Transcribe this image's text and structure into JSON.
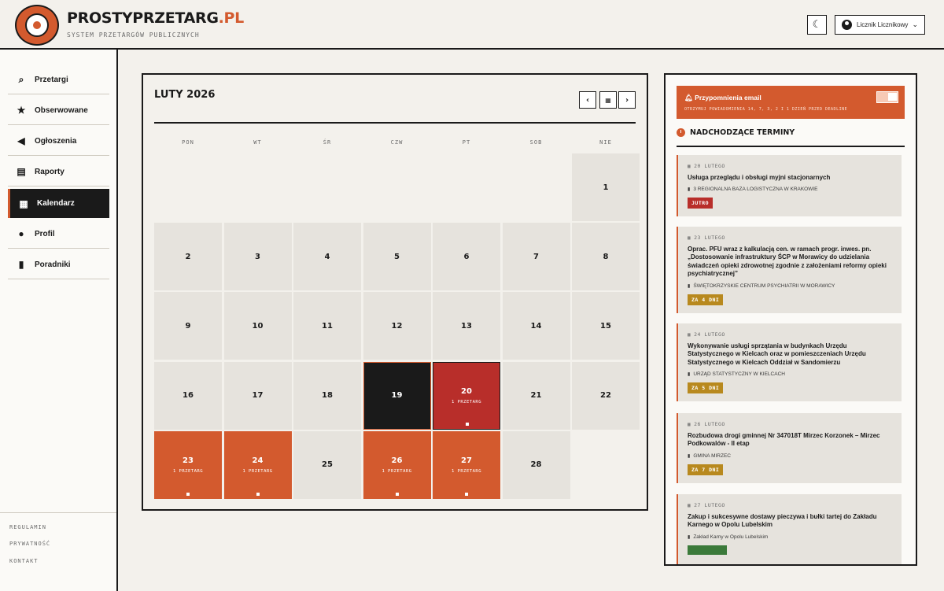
{
  "header": {
    "brand_main": "PROSTYPRZETARG",
    "brand_suffix": ".PL",
    "tagline": "SYSTEM PRZETARGÓW PUBLICZNYCH",
    "theme_icon": "moon-icon",
    "user_name": "Licznik Licznikowy"
  },
  "sidebar": {
    "items": [
      {
        "label": "Przetargi",
        "icon": "search-icon"
      },
      {
        "label": "Obserwowane",
        "icon": "star-icon"
      },
      {
        "label": "Ogłoszenia",
        "icon": "megaphone-icon"
      },
      {
        "label": "Raporty",
        "icon": "report-icon"
      },
      {
        "label": "Kalendarz",
        "icon": "calendar-icon"
      },
      {
        "label": "Profil",
        "icon": "user-icon"
      },
      {
        "label": "Poradniki",
        "icon": "book-icon"
      }
    ],
    "active": "Kalendarz",
    "footer": [
      "REGULAMIN",
      "PRYWATNOŚĆ",
      "KONTAKT"
    ]
  },
  "calendar": {
    "title": "LUTY 2026",
    "weekdays": [
      "PON",
      "WT",
      "ŚR",
      "CZW",
      "PT",
      "SOB",
      "NIE"
    ],
    "days": [
      {
        "n": "1",
        "state": "normal",
        "count": ""
      },
      {
        "n": "2",
        "state": "normal",
        "count": ""
      },
      {
        "n": "3",
        "state": "normal",
        "count": ""
      },
      {
        "n": "4",
        "state": "normal",
        "count": ""
      },
      {
        "n": "5",
        "state": "normal",
        "count": ""
      },
      {
        "n": "6",
        "state": "normal",
        "count": ""
      },
      {
        "n": "7",
        "state": "normal",
        "count": ""
      },
      {
        "n": "8",
        "state": "normal",
        "count": ""
      },
      {
        "n": "9",
        "state": "normal",
        "count": ""
      },
      {
        "n": "10",
        "state": "normal",
        "count": ""
      },
      {
        "n": "11",
        "state": "normal",
        "count": ""
      },
      {
        "n": "12",
        "state": "normal",
        "count": ""
      },
      {
        "n": "13",
        "state": "normal",
        "count": ""
      },
      {
        "n": "14",
        "state": "normal",
        "count": ""
      },
      {
        "n": "15",
        "state": "normal",
        "count": ""
      },
      {
        "n": "16",
        "state": "normal",
        "count": ""
      },
      {
        "n": "17",
        "state": "normal",
        "count": ""
      },
      {
        "n": "18",
        "state": "normal",
        "count": ""
      },
      {
        "n": "19",
        "state": "today",
        "count": ""
      },
      {
        "n": "20",
        "state": "red",
        "count": "1 PRZETARG"
      },
      {
        "n": "21",
        "state": "normal",
        "count": ""
      },
      {
        "n": "22",
        "state": "normal",
        "count": ""
      },
      {
        "n": "23",
        "state": "orange",
        "count": "1 PRZETARG"
      },
      {
        "n": "24",
        "state": "orange",
        "count": "1 PRZETARG"
      },
      {
        "n": "25",
        "state": "normal",
        "count": ""
      },
      {
        "n": "26",
        "state": "orange",
        "count": "1 PRZETARG"
      },
      {
        "n": "27",
        "state": "orange",
        "count": "1 PRZETARG"
      },
      {
        "n": "28",
        "state": "normal",
        "count": ""
      }
    ]
  },
  "panel": {
    "reminder_title": "Przypomnienia email",
    "reminder_sub": "OTRZYMUJ POWIADOMIENIA 14, 7, 3, 2 I 1 DZIEŃ PRZED DEADLINE",
    "upcoming_title": "NADCHODZĄCE TERMINY",
    "events": [
      {
        "date": "20 LUTEGO",
        "name": "Usługa przeglądu i obsługi myjni stacjonarnych",
        "org": "3 REGIONALNA BAZA LOGISTYCZNA W KRAKOWIE",
        "badge": "JUTRO",
        "badge_color": "#b82e2a"
      },
      {
        "date": "23 LUTEGO",
        "name": "Oprac. PFU wraz z kalkulacją cen. w ramach progr. inwes. pn. „Dostosowanie infrastruktury ŚCP w Morawicy do udzielania świadczeń opieki zdrowotnej zgodnie z założeniami reformy opieki psychiatrycznej”",
        "org": "ŚWIĘTOKRZYSKIE CENTRUM PSYCHIATRII W MORAWICY",
        "badge": "ZA 4 DNI",
        "badge_color": "#b8891e"
      },
      {
        "date": "24 LUTEGO",
        "name": "Wykonywanie usługi sprzątania w budynkach Urzędu Statystycznego w Kielcach oraz w pomieszczeniach Urzędu Statystycznego w Kielcach Oddział w Sandomierzu",
        "org": "URZĄD STATYSTYCZNY W KIELCACH",
        "badge": "ZA 5 DNI",
        "badge_color": "#b8891e"
      },
      {
        "date": "26 LUTEGO",
        "name": "Rozbudowa drogi gminnej Nr 347018T Mirzec Korzonek – Mirzec Podkowalów - II etap",
        "org": "GMINA MIRZEC",
        "badge": "ZA 7 DNI",
        "badge_color": "#b8891e"
      },
      {
        "date": "27 LUTEGO",
        "name": "Zakup i sukcesywne dostawy pieczywa i bułki tartej do Zakładu Karnego w Opolu Lubelskim",
        "org": "Zakład Karny w Opolu Lubelskim",
        "badge": "",
        "badge_color": "#3b7a3a"
      }
    ]
  }
}
